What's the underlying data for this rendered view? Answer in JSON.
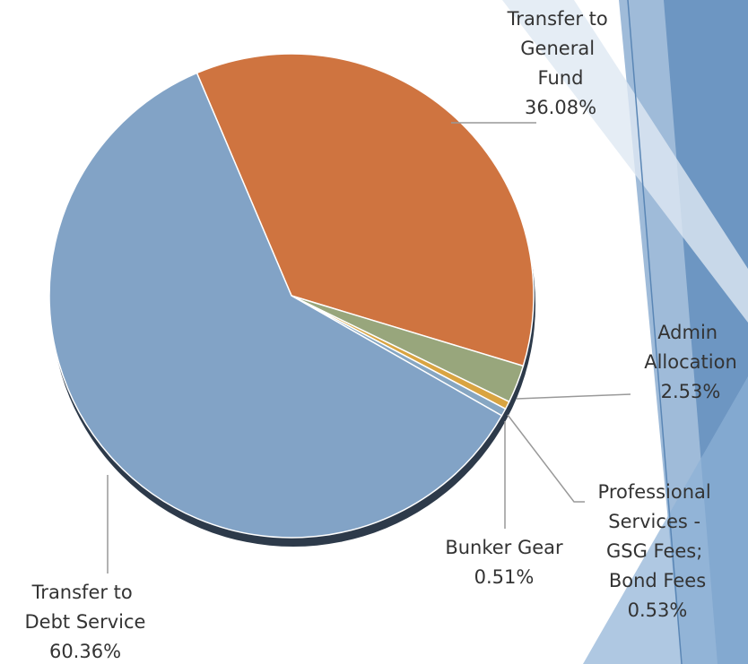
{
  "chart_data": {
    "type": "pie",
    "categories": [
      "Transfer to General Fund",
      "Admin Allocation",
      "Professional Services - GSG Fees; Bond Fees",
      "Bunker Gear",
      "Transfer to Debt Service"
    ],
    "values": [
      36.08,
      2.53,
      0.53,
      0.51,
      60.36
    ],
    "value_labels": [
      "36.08%",
      "2.53%",
      "0.53%",
      "0.51%",
      "60.36%"
    ],
    "colors": [
      "#cf7440",
      "#98a67c",
      "#d9a441",
      "#86a6c2",
      "#82a3c6"
    ]
  }
}
